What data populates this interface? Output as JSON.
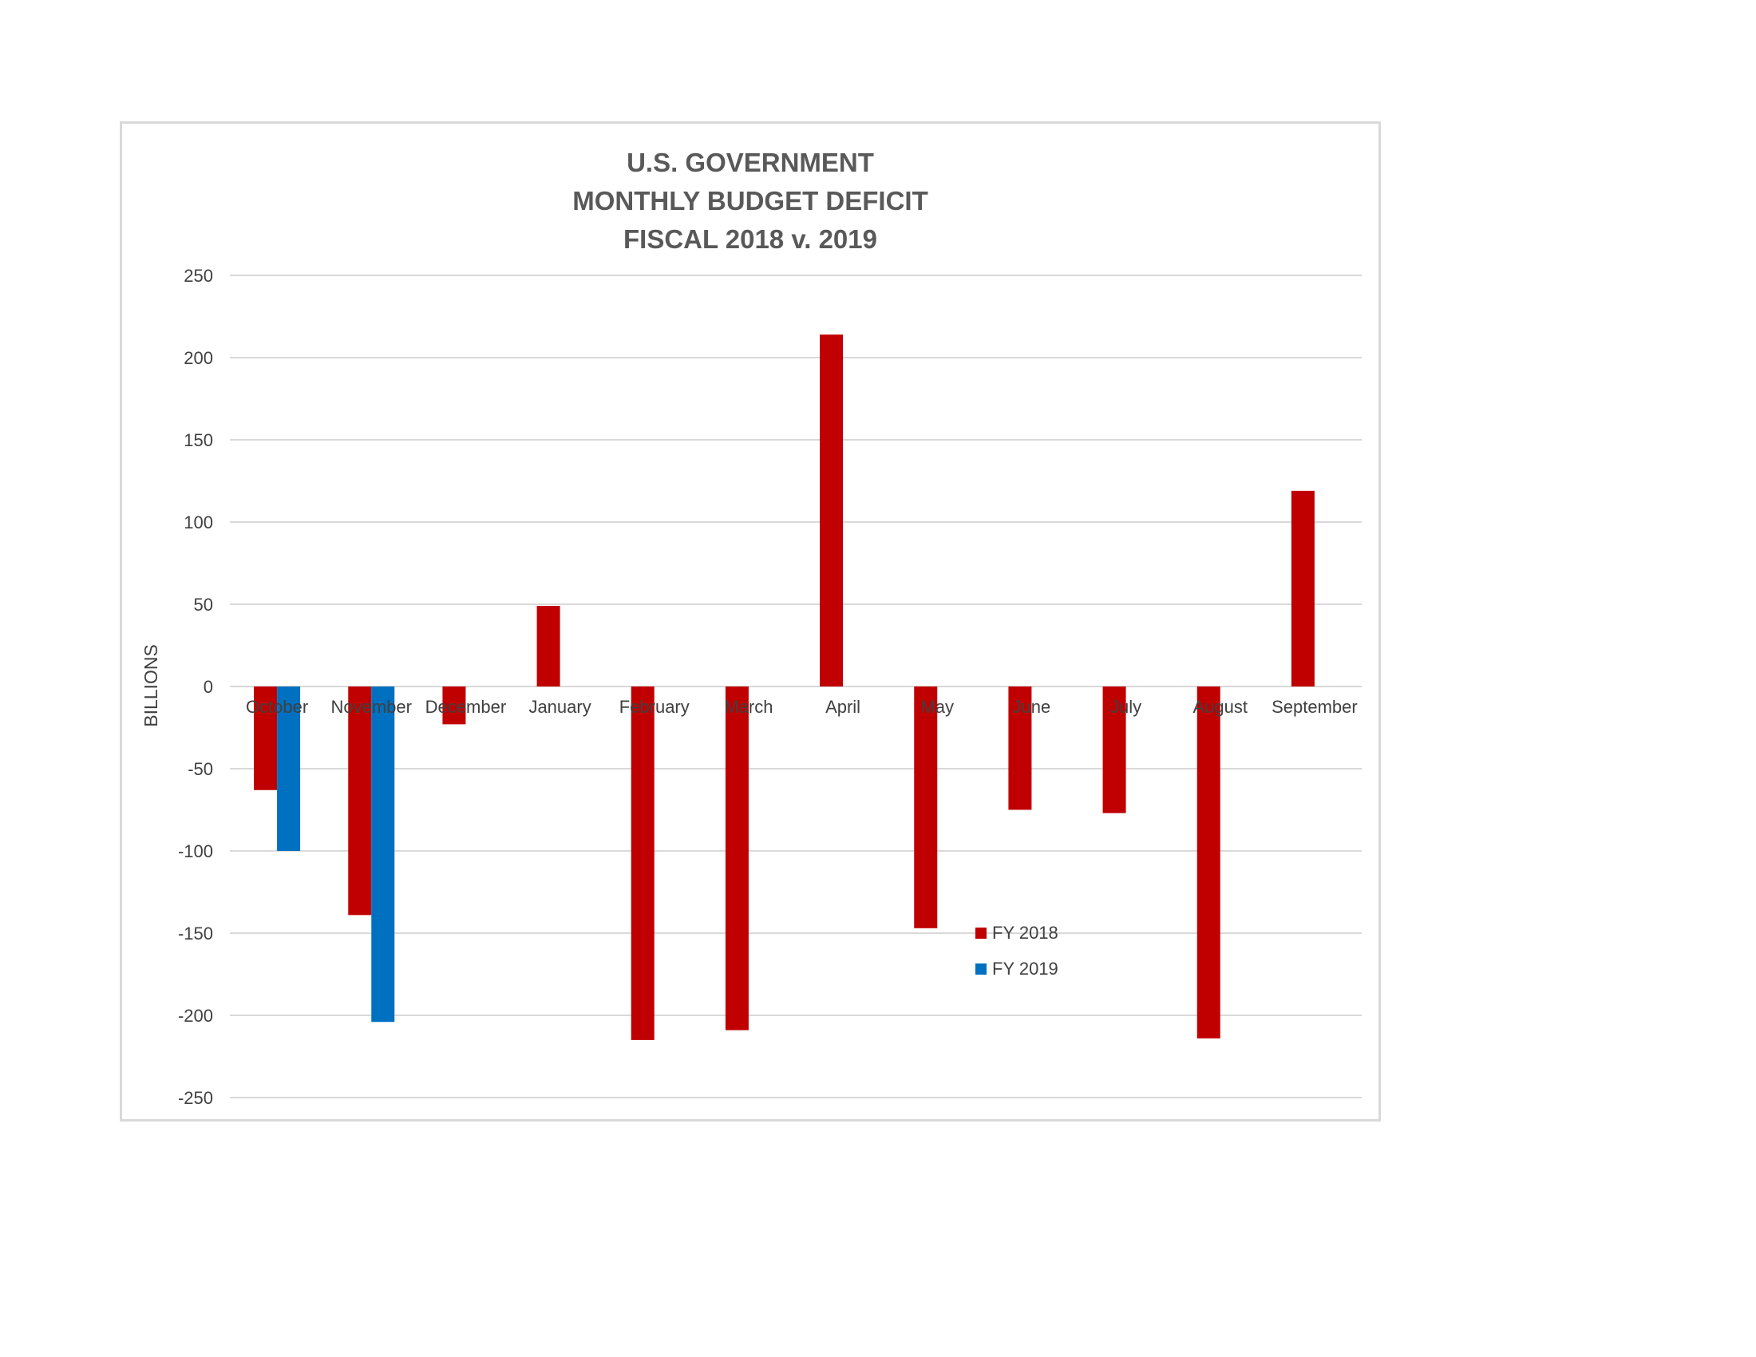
{
  "chart_data": {
    "type": "bar",
    "title_lines": [
      "U.S. GOVERNMENT",
      "MONTHLY BUDGET DEFICIT",
      "FISCAL 2018 v. 2019"
    ],
    "xlabel": "",
    "ylabel": "BILLIONS",
    "ylim": [
      -250,
      250
    ],
    "yticks": [
      250,
      200,
      150,
      100,
      50,
      0,
      -50,
      -100,
      -150,
      -200,
      -250
    ],
    "grid": true,
    "legend_position": "bottom-center",
    "categories": [
      "October",
      "November",
      "December",
      "January",
      "February",
      "March",
      "April",
      "May",
      "June",
      "July",
      "August",
      "September"
    ],
    "series": [
      {
        "name": "FY 2018",
        "color": "#c00000",
        "values": [
          -63,
          -139,
          -23,
          49,
          -215,
          -209,
          214,
          -147,
          -75,
          -77,
          -214,
          119
        ]
      },
      {
        "name": "FY 2019",
        "color": "#0070c0",
        "values": [
          -100,
          -204,
          null,
          null,
          null,
          null,
          null,
          null,
          null,
          null,
          null,
          null
        ]
      }
    ]
  }
}
